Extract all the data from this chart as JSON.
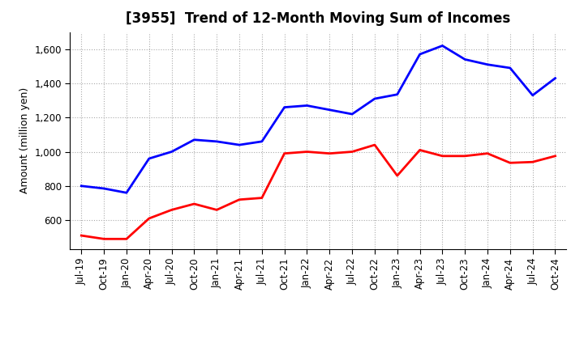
{
  "title": "[3955]  Trend of 12-Month Moving Sum of Incomes",
  "ylabel": "Amount (million yen)",
  "ordinary_income": {
    "color": "#0000FF",
    "data": [
      800,
      785,
      760,
      960,
      1000,
      1070,
      1060,
      1040,
      1060,
      1260,
      1270,
      1245,
      1220,
      1310,
      1335,
      1570,
      1620,
      1540,
      1510,
      1490,
      1330,
      1430
    ]
  },
  "net_income": {
    "color": "#FF0000",
    "data": [
      510,
      490,
      490,
      610,
      660,
      695,
      660,
      720,
      730,
      990,
      1000,
      990,
      1000,
      1040,
      860,
      1010,
      975,
      975,
      990,
      935,
      940,
      975
    ]
  },
  "x_ticks_labels": [
    "Jul-19",
    "Oct-19",
    "Jan-20",
    "Apr-20",
    "Jul-20",
    "Oct-20",
    "Jan-21",
    "Apr-21",
    "Jul-21",
    "Oct-21",
    "Jan-22",
    "Apr-22",
    "Jul-22",
    "Oct-22",
    "Jan-23",
    "Apr-23",
    "Jul-23",
    "Oct-23",
    "Jan-24",
    "Apr-24",
    "Jul-24",
    "Oct-24"
  ],
  "ylim": [
    430,
    1700
  ],
  "yticks": [
    600,
    800,
    1000,
    1200,
    1400,
    1600
  ],
  "ytick_labels": [
    "600",
    "800",
    "1,000",
    "1,200",
    "1,400",
    "1,600"
  ],
  "background_color": "#FFFFFF",
  "plot_bg_color": "#FFFFFF",
  "grid_color": "#AAAAAA",
  "line_width": 2.0,
  "title_fontsize": 12,
  "axis_fontsize": 9,
  "tick_fontsize": 8.5,
  "legend_fontsize": 10
}
